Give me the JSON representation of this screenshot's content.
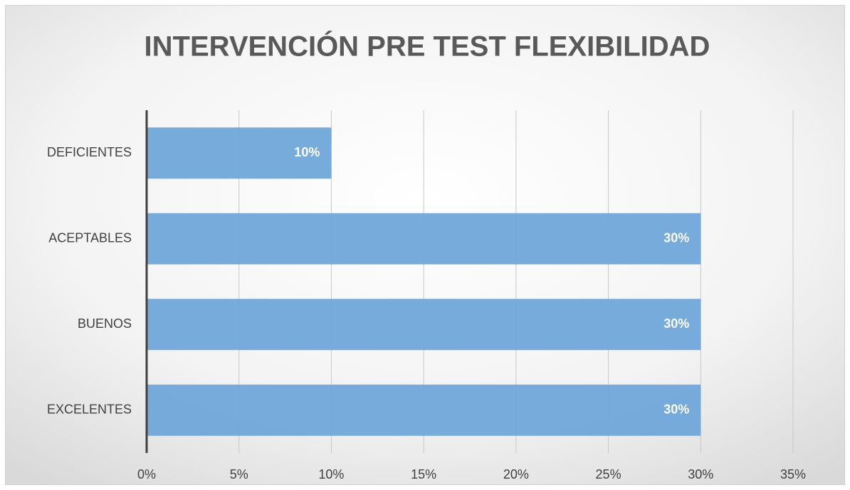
{
  "chart_data": {
    "type": "hbar",
    "title": "INTERVENCIÓN PRE TEST FLEXIBILIDAD",
    "categories": [
      "DEFICIENTES",
      "ACEPTABLES",
      "BUENOS",
      "EXCELENTES"
    ],
    "values": [
      10,
      30,
      30,
      30
    ],
    "value_labels": [
      "10%",
      "30%",
      "30%",
      "30%"
    ],
    "color": "#6fa6da",
    "xlim": [
      0,
      35
    ],
    "xticks": [
      {
        "value": 0,
        "label": "0%"
      },
      {
        "value": 5,
        "label": "5%"
      },
      {
        "value": 10,
        "label": "10%"
      },
      {
        "value": 15,
        "label": "15%"
      },
      {
        "value": 20,
        "label": "20%"
      },
      {
        "value": 25,
        "label": "25%"
      },
      {
        "value": 30,
        "label": "30%"
      },
      {
        "value": 35,
        "label": "35%"
      }
    ],
    "grid": true
  }
}
